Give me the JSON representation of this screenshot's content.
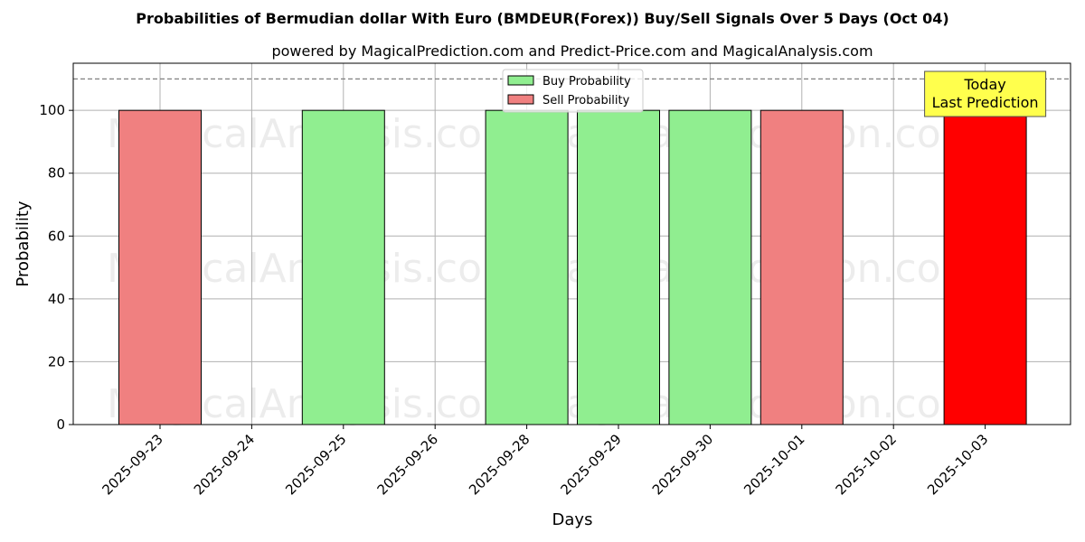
{
  "chart_data": {
    "type": "bar",
    "title": "Probabilities of Bermudian dollar With Euro (BMDEUR(Forex)) Buy/Sell Signals Over 5 Days (Oct 04)",
    "subtitle": "powered by MagicalPrediction.com and Predict-Price.com and MagicalAnalysis.com",
    "xlabel": "Days",
    "ylabel": "Probability",
    "ylim": [
      0,
      115
    ],
    "yticks": [
      0,
      20,
      40,
      60,
      80,
      100
    ],
    "grid": true,
    "legend_position": "top-center",
    "categories": [
      "2025-09-23",
      "2025-09-24",
      "2025-09-25",
      "2025-09-26",
      "2025-09-28",
      "2025-09-29",
      "2025-09-30",
      "2025-10-01",
      "2025-10-02",
      "2025-10-03"
    ],
    "series": [
      {
        "name": "Buy Probability",
        "color": "#90ee90",
        "values": [
          0,
          0,
          100,
          0,
          100,
          100,
          100,
          0,
          0,
          0
        ]
      },
      {
        "name": "Sell Probability",
        "color": "#f08080",
        "values": [
          100,
          0,
          0,
          0,
          0,
          0,
          0,
          100,
          0,
          100
        ]
      }
    ],
    "highlight": {
      "category": "2025-10-03",
      "color": "#ff0000"
    },
    "reference_line": {
      "y": 110,
      "style": "dashed",
      "color": "#808080"
    },
    "annotation": {
      "lines": [
        "Today",
        "Last Prediction"
      ],
      "category": "2025-10-03",
      "background": "#ffff4d"
    },
    "watermarks": [
      "MagicalAnalysis.com",
      "MagicalPrediction.com"
    ]
  }
}
